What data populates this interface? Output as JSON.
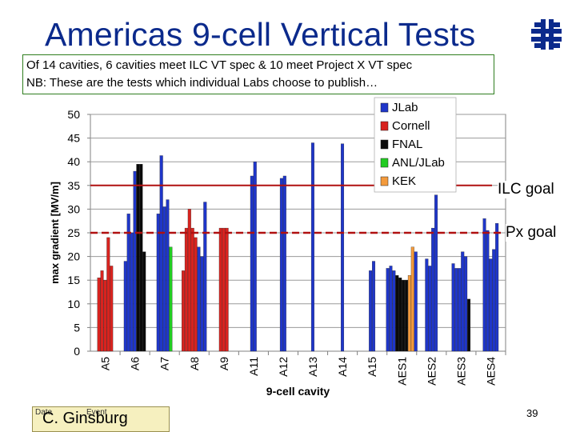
{
  "title": "Americas 9-cell Vertical Tests",
  "info": {
    "line1": "Of 14 cavities, 6 cavities meet ILC VT spec & 10 meet Project X VT spec",
    "line2": "NB: These are the tests which individual Labs choose to publish…"
  },
  "logo_icon": "fermilab-logo-icon",
  "footer": {
    "date_label": "Date",
    "event_label": "Event",
    "author": "C. Ginsburg",
    "page_number": "39"
  },
  "goals": {
    "ilc_label": "ILC goal",
    "px_label": "Px goal"
  },
  "colors": {
    "JLab": "#1f36c9",
    "Cornell": "#d8231f",
    "FNAL": "#0a0a0a",
    "ANL/JLab": "#22cc22",
    "KEK": "#f39a3c",
    "ilc_line": "#b01010",
    "px_line": "#b01010",
    "title": "#0b2a8c"
  },
  "chart_data": {
    "type": "bar",
    "xlabel": "9-cell cavity",
    "ylabel": "max gradient [MV/m]",
    "ylim": [
      0,
      50
    ],
    "yticks": [
      0,
      5,
      10,
      15,
      20,
      25,
      30,
      35,
      40,
      45,
      50
    ],
    "grid": true,
    "legend_position": "top-right",
    "legend": [
      "JLab",
      "Cornell",
      "FNAL",
      "ANL/JLab",
      "KEK"
    ],
    "reference_lines": [
      {
        "name": "ILC goal",
        "value": 35,
        "style": "solid"
      },
      {
        "name": "Px goal",
        "value": 25,
        "style": "dashed"
      }
    ],
    "categories": [
      {
        "label": "A5",
        "bars": [
          {
            "lab": "Cornell",
            "value": 15.5
          },
          {
            "lab": "Cornell",
            "value": 17
          },
          {
            "lab": "Cornell",
            "value": 15
          },
          {
            "lab": "Cornell",
            "value": 24
          },
          {
            "lab": "Cornell",
            "value": 18
          }
        ]
      },
      {
        "label": "A6",
        "bars": [
          {
            "lab": "JLab",
            "value": 19
          },
          {
            "lab": "JLab",
            "value": 29
          },
          {
            "lab": "JLab",
            "value": 25
          },
          {
            "lab": "JLab",
            "value": 38
          },
          {
            "lab": "FNAL",
            "value": 39.5
          },
          {
            "lab": "FNAL",
            "value": 39.5
          },
          {
            "lab": "FNAL",
            "value": 21
          }
        ]
      },
      {
        "label": "A7",
        "bars": [
          {
            "lab": "JLab",
            "value": 29
          },
          {
            "lab": "JLab",
            "value": 41.3
          },
          {
            "lab": "JLab",
            "value": 30.5
          },
          {
            "lab": "JLab",
            "value": 32
          },
          {
            "lab": "ANL/JLab",
            "value": 22
          }
        ]
      },
      {
        "label": "A8",
        "bars": [
          {
            "lab": "Cornell",
            "value": 17
          },
          {
            "lab": "Cornell",
            "value": 26
          },
          {
            "lab": "Cornell",
            "value": 30
          },
          {
            "lab": "Cornell",
            "value": 26
          },
          {
            "lab": "Cornell",
            "value": 24
          },
          {
            "lab": "JLab",
            "value": 22
          },
          {
            "lab": "JLab",
            "value": 20
          },
          {
            "lab": "JLab",
            "value": 31.5
          }
        ]
      },
      {
        "label": "A9",
        "bars": [
          {
            "lab": "Cornell",
            "value": 26
          },
          {
            "lab": "Cornell",
            "value": 26
          },
          {
            "lab": "Cornell",
            "value": 26
          }
        ]
      },
      {
        "label": "A11",
        "bars": [
          {
            "lab": "JLab",
            "value": 37
          },
          {
            "lab": "JLab",
            "value": 40
          }
        ]
      },
      {
        "label": "A12",
        "bars": [
          {
            "lab": "JLab",
            "value": 36.5
          },
          {
            "lab": "JLab",
            "value": 37
          }
        ]
      },
      {
        "label": "A13",
        "bars": [
          {
            "lab": "JLab",
            "value": 44
          }
        ]
      },
      {
        "label": "A14",
        "bars": [
          {
            "lab": "JLab",
            "value": 43.8
          }
        ]
      },
      {
        "label": "A15",
        "bars": [
          {
            "lab": "JLab",
            "value": 17
          },
          {
            "lab": "JLab",
            "value": 19
          }
        ]
      },
      {
        "label": "AES1",
        "bars": [
          {
            "lab": "JLab",
            "value": 17.5
          },
          {
            "lab": "JLab",
            "value": 18
          },
          {
            "lab": "JLab",
            "value": 17
          },
          {
            "lab": "FNAL",
            "value": 16
          },
          {
            "lab": "FNAL",
            "value": 15.5
          },
          {
            "lab": "FNAL",
            "value": 15
          },
          {
            "lab": "FNAL",
            "value": 15
          },
          {
            "lab": "KEK",
            "value": 16
          },
          {
            "lab": "KEK",
            "value": 22
          },
          {
            "lab": "JLab",
            "value": 21
          }
        ]
      },
      {
        "label": "AES2",
        "bars": [
          {
            "lab": "JLab",
            "value": 19.5
          },
          {
            "lab": "JLab",
            "value": 18
          },
          {
            "lab": "JLab",
            "value": 26
          },
          {
            "lab": "JLab",
            "value": 33
          }
        ]
      },
      {
        "label": "AES3",
        "bars": [
          {
            "lab": "JLab",
            "value": 18.5
          },
          {
            "lab": "JLab",
            "value": 17.5
          },
          {
            "lab": "JLab",
            "value": 17.5
          },
          {
            "lab": "JLab",
            "value": 21
          },
          {
            "lab": "JLab",
            "value": 20
          },
          {
            "lab": "FNAL",
            "value": 11
          }
        ]
      },
      {
        "label": "AES4",
        "bars": [
          {
            "lab": "JLab",
            "value": 28
          },
          {
            "lab": "JLab",
            "value": 25.5
          },
          {
            "lab": "JLab",
            "value": 19.5
          },
          {
            "lab": "JLab",
            "value": 21.5
          },
          {
            "lab": "JLab",
            "value": 27
          }
        ]
      }
    ]
  }
}
